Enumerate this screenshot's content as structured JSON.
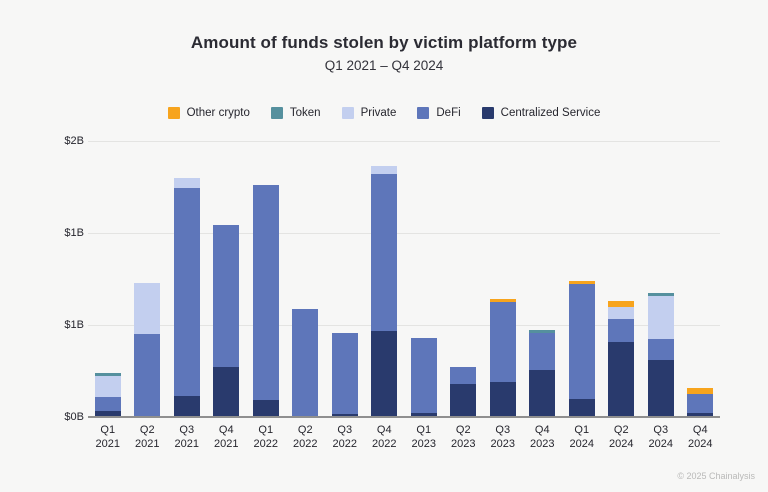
{
  "page": {
    "footer": "© 2025 Chainalysis"
  },
  "chart_data": {
    "type": "bar",
    "stacked": true,
    "title": "Amount of funds stolen by victim platform type",
    "subtitle": "Q1 2021 – Q4 2024",
    "unit": "USD billions",
    "grid": true,
    "legend_position": "top",
    "categories": [
      "Q1 2021",
      "Q2 2021",
      "Q3 2021",
      "Q4 2021",
      "Q1 2022",
      "Q2 2022",
      "Q3 2022",
      "Q4 2022",
      "Q1 2023",
      "Q2 2023",
      "Q3 2023",
      "Q4 2023",
      "Q1 2024",
      "Q2 2024",
      "Q3 2024",
      "Q4 2024"
    ],
    "series": [
      {
        "name": "Centralized Service",
        "color": "#293a6d",
        "values": [
          0.04,
          0,
          0.15,
          0.36,
          0.12,
          0,
          0.02,
          0.62,
          0.03,
          0.24,
          0.25,
          0.34,
          0.13,
          0.54,
          0.41,
          0.03
        ]
      },
      {
        "name": "DeFi",
        "color": "#5e76ba",
        "values": [
          0.1,
          0.6,
          1.51,
          1.03,
          1.56,
          0.78,
          0.59,
          1.14,
          0.54,
          0.12,
          0.58,
          0.27,
          0.83,
          0.17,
          0.15,
          0.14
        ]
      },
      {
        "name": "Private",
        "color": "#c3cfef",
        "values": [
          0.15,
          0.37,
          0.07,
          0,
          0,
          0,
          0,
          0.06,
          0,
          0,
          0,
          0,
          0,
          0.09,
          0.31,
          0
        ]
      },
      {
        "name": "Token",
        "color": "#55909e",
        "values": [
          0.02,
          0,
          0,
          0,
          0,
          0,
          0,
          0,
          0,
          0,
          0,
          0.02,
          0,
          0,
          0.02,
          0
        ]
      },
      {
        "name": "Other crypto",
        "color": "#f7a41d",
        "values": [
          0,
          0,
          0,
          0,
          0,
          0,
          0,
          0,
          0,
          0,
          0.02,
          0,
          0.02,
          0.04,
          0,
          0.04
        ]
      }
    ],
    "stack_order_note": "series array is bottom-to-top stacking order",
    "totals": [
      0.31,
      0.97,
      1.73,
      1.39,
      1.68,
      0.78,
      0.61,
      1.82,
      0.57,
      0.36,
      0.85,
      0.63,
      0.98,
      0.84,
      0.89,
      0.21
    ],
    "legend": [
      {
        "label": "Other crypto",
        "color": "#f7a41d"
      },
      {
        "label": "Token",
        "color": "#55909e"
      },
      {
        "label": "Private",
        "color": "#c3cfef"
      },
      {
        "label": "DeFi",
        "color": "#5e76ba"
      },
      {
        "label": "Centralized Service",
        "color": "#293a6d"
      }
    ],
    "y_axis": {
      "ticks": [
        "$2B",
        "$1B",
        "$1B",
        "$0B"
      ],
      "tick_values": [
        2,
        1.3333,
        0.6667,
        0
      ],
      "min": 0,
      "max": 2
    }
  }
}
